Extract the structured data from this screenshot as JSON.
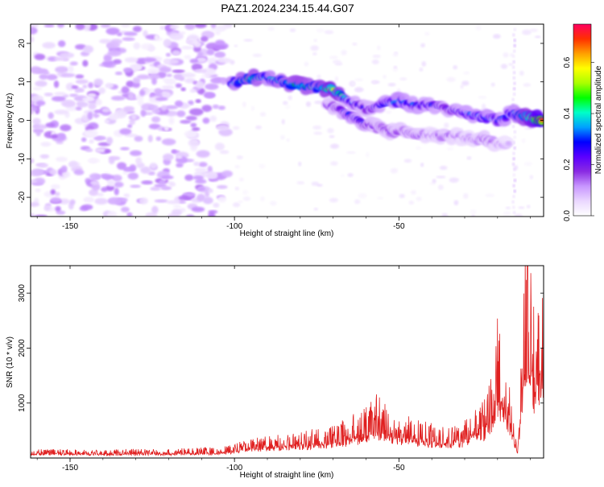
{
  "title": "PAZ1.2024.234.15.44.G07",
  "chart_data": [
    {
      "type": "heatmap",
      "xlabel": "Height of straight line (km)",
      "ylabel": "Frequency (Hz)",
      "xlim": [
        -162,
        -6
      ],
      "ylim": [
        -25,
        25
      ],
      "xticks": [
        -150,
        -100,
        -50
      ],
      "yticks": [
        -20,
        -10,
        0,
        10,
        20
      ],
      "xtick_labels": [
        "-150",
        "-100",
        "-50"
      ],
      "ytick_labels": [
        "-20",
        "-10",
        "0",
        "10",
        "20"
      ],
      "colorbar": {
        "label": "Normalized spectral amplitude",
        "range": [
          0,
          0.75
        ],
        "ticks": [
          0.0,
          0.2,
          0.4,
          0.6
        ],
        "tick_labels": [
          "0.0",
          "0.2",
          "0.4",
          "0.6"
        ],
        "colors": [
          "#ffffff",
          "#ead7ff",
          "#c896ff",
          "#8a2be2",
          "#5a00ff",
          "#0000ff",
          "#00a0ff",
          "#00ffc8",
          "#00ff00",
          "#aaff00",
          "#ffff00",
          "#ffa000",
          "#ff3000",
          "#ff0060"
        ]
      },
      "ridge": {
        "x": [
          -101,
          -95,
          -90,
          -85,
          -80,
          -75,
          -70,
          -65,
          -60,
          -55,
          -50,
          -45,
          -40,
          -35,
          -30,
          -25,
          -20,
          -15,
          -12,
          -9,
          -6
        ],
        "y": [
          9.5,
          11,
          11,
          10,
          9,
          8.5,
          8,
          5,
          3,
          4,
          5,
          4,
          4,
          3,
          2,
          1,
          0,
          2,
          1,
          0.5,
          0
        ],
        "amplitude": [
          0.35,
          0.45,
          0.35,
          0.4,
          0.45,
          0.4,
          0.55,
          0.3,
          0.25,
          0.3,
          0.35,
          0.3,
          0.3,
          0.25,
          0.3,
          0.35,
          0.3,
          0.35,
          0.45,
          0.6,
          0.75
        ]
      },
      "lower_ridge": {
        "x": [
          -72,
          -68,
          -64,
          -60,
          -56,
          -52,
          -48,
          -44,
          -40,
          -36,
          -32,
          -28,
          -24,
          -20,
          -16
        ],
        "y": [
          4,
          3,
          1,
          -1,
          -2,
          -3,
          -3,
          -4,
          -4,
          -4,
          -4,
          -5,
          -5,
          -6,
          -6
        ],
        "amplitude": [
          0.2,
          0.25,
          0.3,
          0.25,
          0.2,
          0.2,
          0.2,
          0.2,
          0.15,
          0.2,
          0.15,
          0.15,
          0.2,
          0.15,
          0.1
        ]
      }
    },
    {
      "type": "line",
      "xlabel": "Height of straight line (km)",
      "ylabel": "SNR (10 * v/v)",
      "xlim": [
        -162,
        -6
      ],
      "ylim": [
        0,
        3500
      ],
      "xticks": [
        -150,
        -100,
        -50
      ],
      "yticks": [
        1000,
        2000,
        3000
      ],
      "xtick_labels": [
        "-150",
        "-100",
        "-50"
      ],
      "ytick_labels": [
        "1000",
        "2000",
        "3000"
      ],
      "series": [
        {
          "color": "#e02020",
          "x": [
            -162,
            -150,
            -140,
            -130,
            -120,
            -110,
            -105,
            -100,
            -95,
            -90,
            -85,
            -80,
            -75,
            -70,
            -65,
            -60,
            -57,
            -55,
            -50,
            -45,
            -40,
            -35,
            -30,
            -25,
            -22,
            -20,
            -18,
            -16,
            -14,
            -12,
            -11,
            -10,
            -9,
            -8,
            -6
          ],
          "y": [
            120,
            110,
            100,
            120,
            110,
            140,
            130,
            180,
            250,
            280,
            320,
            360,
            380,
            420,
            520,
            650,
            850,
            700,
            560,
            500,
            450,
            420,
            480,
            700,
            1000,
            1800,
            1400,
            900,
            120,
            2200,
            3400,
            2600,
            1900,
            2400,
            2000
          ]
        }
      ]
    }
  ]
}
